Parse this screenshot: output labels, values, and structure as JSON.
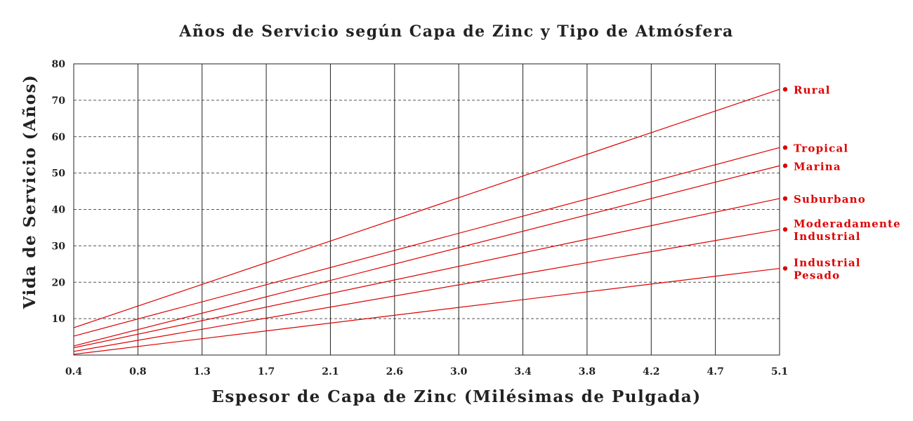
{
  "chart_data": {
    "type": "line",
    "title": "Años de Servicio según Capa de Zinc y Tipo de Atmósfera",
    "xlabel": "Espesor de Capa de Zinc (Milésimas de Pulgada)",
    "ylabel": "Vida de Servicio (Años)",
    "xlim": [
      0.4,
      5.1
    ],
    "ylim": [
      0,
      80
    ],
    "x_tick_labels": [
      "0.4",
      "0.8",
      "1.3",
      "1.7",
      "2.1",
      "2.6",
      "3.0",
      "3.4",
      "3.8",
      "4.2",
      "4.7",
      "5.1"
    ],
    "y_ticks": [
      10,
      20,
      30,
      40,
      50,
      60,
      70,
      80
    ],
    "grid": {
      "x": "solid",
      "y": "dashed"
    },
    "line_color": "#dd0000",
    "series": [
      {
        "name": "Rural",
        "label_lines": [
          "Rural"
        ],
        "x": [
          0.4,
          5.1
        ],
        "y": [
          7.5,
          73
        ]
      },
      {
        "name": "Tropical",
        "label_lines": [
          "Tropical"
        ],
        "x": [
          0.4,
          5.1
        ],
        "y": [
          5.2,
          57
        ]
      },
      {
        "name": "Marina",
        "label_lines": [
          "Marina"
        ],
        "x": [
          0.4,
          5.1
        ],
        "y": [
          2.5,
          52
        ]
      },
      {
        "name": "Suburbano",
        "label_lines": [
          "Suburbano"
        ],
        "x": [
          0.4,
          5.1
        ],
        "y": [
          2.0,
          43
        ]
      },
      {
        "name": "Moderadamente Industrial",
        "label_lines": [
          "Moderadamente",
          "Industrial"
        ],
        "x": [
          0.4,
          5.1
        ],
        "y": [
          1.0,
          34.5
        ]
      },
      {
        "name": "Industrial Pesado",
        "label_lines": [
          "Industrial",
          "Pesado"
        ],
        "x": [
          0.4,
          5.1
        ],
        "y": [
          0.2,
          23.8
        ]
      }
    ]
  }
}
